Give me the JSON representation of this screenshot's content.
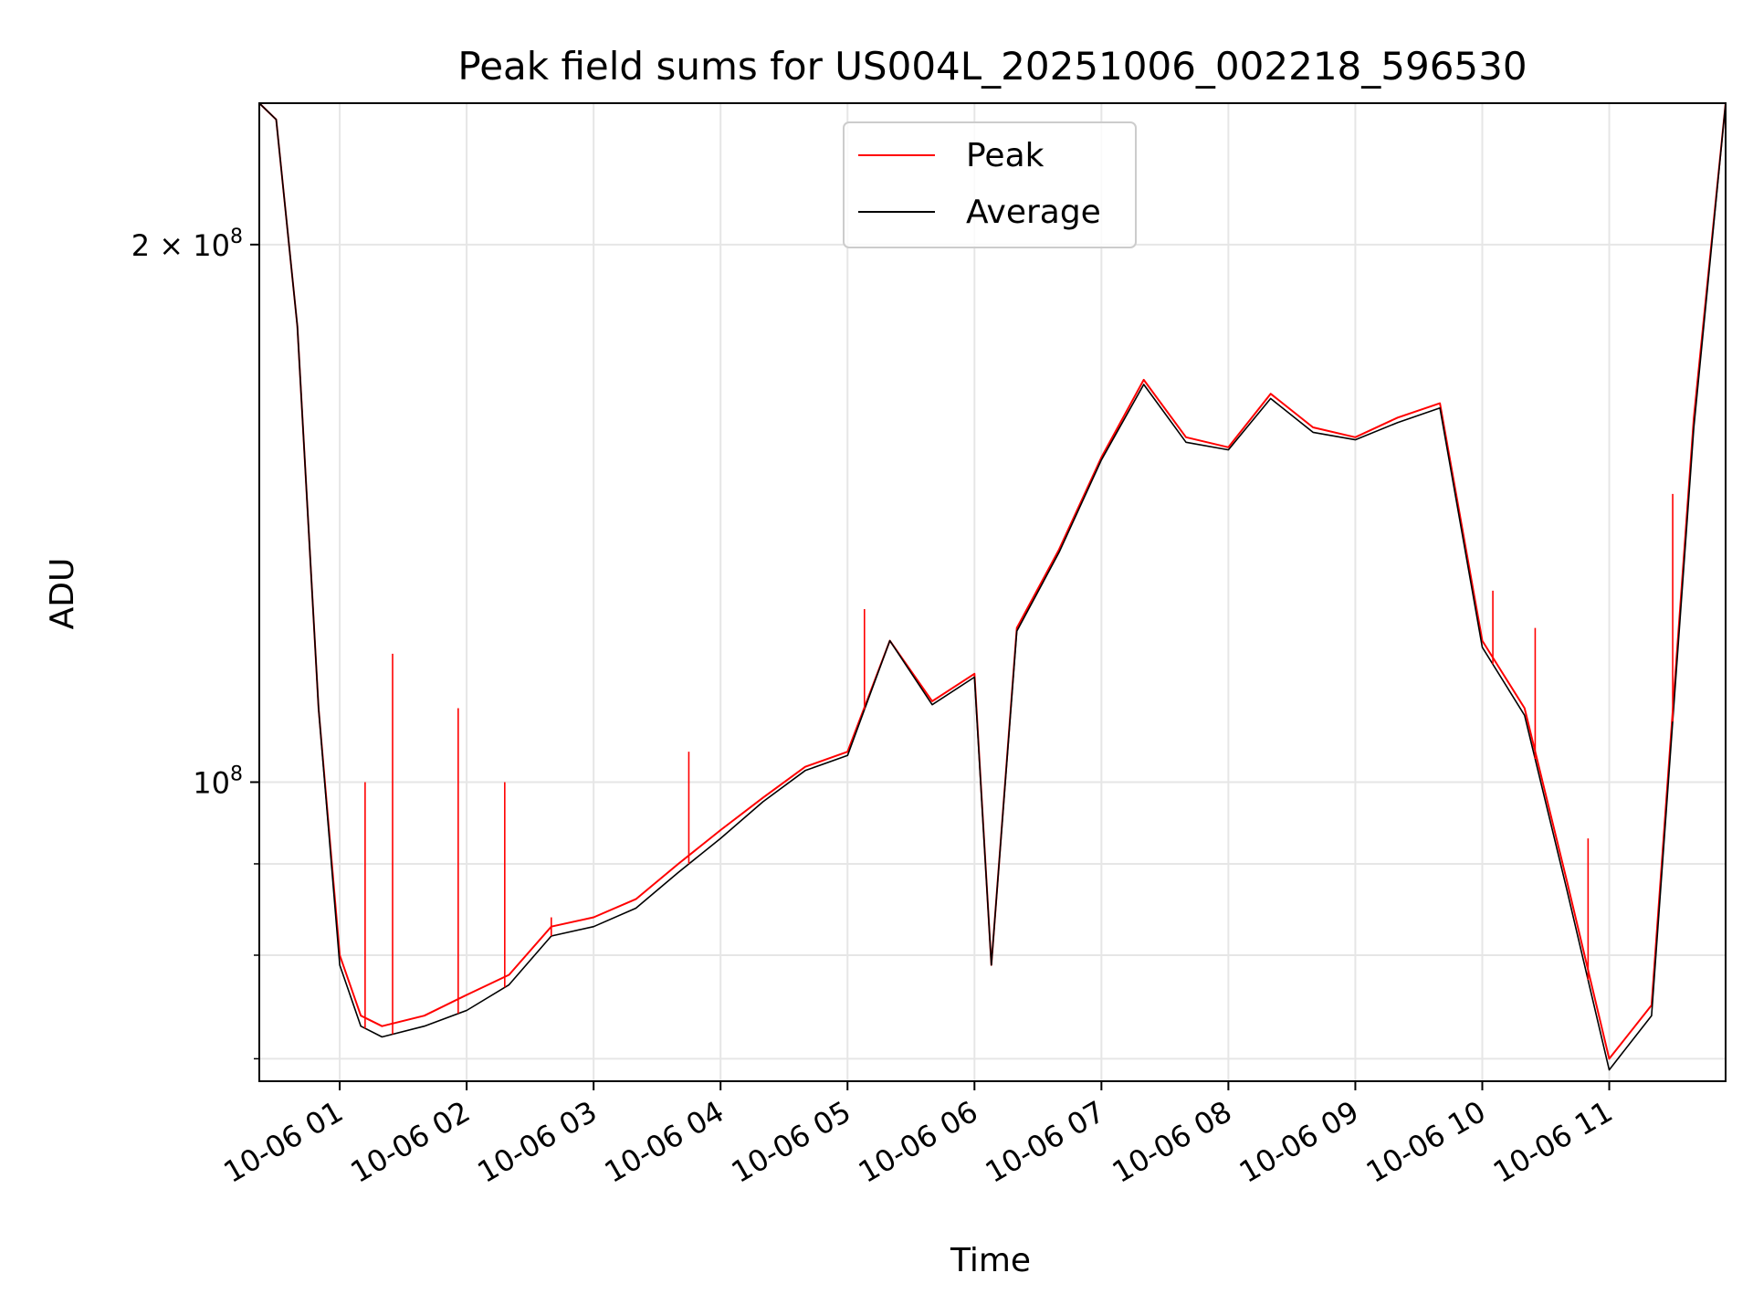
{
  "chart_data": {
    "type": "line",
    "title": "Peak field sums for US004L_20251006_002218_596530",
    "xlabel": "Time",
    "ylabel": "ADU",
    "yscale": "log",
    "ylim": [
      68000000,
      240000000
    ],
    "xlim": [
      "2025-10-06 00:22",
      "2025-10-06 11:55"
    ],
    "grid": true,
    "legend_position": "upper center",
    "x_ticks": [
      "10-06 01",
      "10-06 02",
      "10-06 03",
      "10-06 04",
      "10-06 05",
      "10-06 06",
      "10-06 07",
      "10-06 08",
      "10-06 09",
      "10-06 10",
      "10-06 11"
    ],
    "y_ticks": [
      {
        "label_base": "10",
        "label_exp": "8",
        "label_prefix": "",
        "value": 100000000
      },
      {
        "label_base": "10",
        "label_exp": "8",
        "label_prefix": "2 × ",
        "value": 200000000
      }
    ],
    "y_minor_gridlines": [
      70000000,
      80000000,
      90000000
    ],
    "x": [
      "2025-10-06 00:22",
      "2025-10-06 00:30",
      "2025-10-06 00:40",
      "2025-10-06 00:50",
      "2025-10-06 01:00",
      "2025-10-06 01:10",
      "2025-10-06 01:20",
      "2025-10-06 01:40",
      "2025-10-06 02:00",
      "2025-10-06 02:20",
      "2025-10-06 02:40",
      "2025-10-06 03:00",
      "2025-10-06 03:20",
      "2025-10-06 03:40",
      "2025-10-06 04:00",
      "2025-10-06 04:20",
      "2025-10-06 04:40",
      "2025-10-06 05:00",
      "2025-10-06 05:20",
      "2025-10-06 05:40",
      "2025-10-06 06:00",
      "2025-10-06 06:08",
      "2025-10-06 06:20",
      "2025-10-06 06:40",
      "2025-10-06 07:00",
      "2025-10-06 07:20",
      "2025-10-06 07:40",
      "2025-10-06 08:00",
      "2025-10-06 08:20",
      "2025-10-06 08:40",
      "2025-10-06 09:00",
      "2025-10-06 09:20",
      "2025-10-06 09:40",
      "2025-10-06 10:00",
      "2025-10-06 10:20",
      "2025-10-06 10:40",
      "2025-10-06 11:00",
      "2025-10-06 11:20",
      "2025-10-06 11:40",
      "2025-10-06 11:55"
    ],
    "series": [
      {
        "name": "Peak",
        "color": "#ff0000",
        "values": [
          240000000,
          235000000,
          180000000,
          110000000,
          80000000,
          74000000,
          73000000,
          74000000,
          76000000,
          78000000,
          83000000,
          84000000,
          86000000,
          90000000,
          94000000,
          98000000,
          102000000,
          104000000,
          120000000,
          111000000,
          115000000,
          79000000,
          122000000,
          135000000,
          152000000,
          168000000,
          156000000,
          154000000,
          165000000,
          158000000,
          156000000,
          160000000,
          163000000,
          120000000,
          110000000,
          88000000,
          70000000,
          75000000,
          160000000,
          240000000
        ]
      },
      {
        "name": "Average",
        "color": "#000000",
        "values": [
          240000000,
          235000000,
          180000000,
          110000000,
          79000000,
          73000000,
          72000000,
          73000000,
          74500000,
          77000000,
          82000000,
          83000000,
          85000000,
          89000000,
          93000000,
          97500000,
          101500000,
          103500000,
          120000000,
          110500000,
          114500000,
          79000000,
          121500000,
          134500000,
          151500000,
          167000000,
          155000000,
          153500000,
          164000000,
          157000000,
          155500000,
          159000000,
          162000000,
          119000000,
          109000000,
          87000000,
          69000000,
          74000000,
          158000000,
          240000000
        ]
      }
    ],
    "peak_spikes": [
      {
        "x": "2025-10-06 01:12",
        "value": 100000000
      },
      {
        "x": "2025-10-06 01:25",
        "value": 118000000
      },
      {
        "x": "2025-10-06 01:56",
        "value": 110000000
      },
      {
        "x": "2025-10-06 02:18",
        "value": 100000000
      },
      {
        "x": "2025-10-06 02:40",
        "value": 84000000
      },
      {
        "x": "2025-10-06 03:45",
        "value": 104000000
      },
      {
        "x": "2025-10-06 05:08",
        "value": 125000000
      },
      {
        "x": "2025-10-06 10:05",
        "value": 128000000
      },
      {
        "x": "2025-10-06 10:25",
        "value": 122000000
      },
      {
        "x": "2025-10-06 10:50",
        "value": 93000000
      },
      {
        "x": "2025-10-06 11:30",
        "value": 145000000
      }
    ]
  }
}
